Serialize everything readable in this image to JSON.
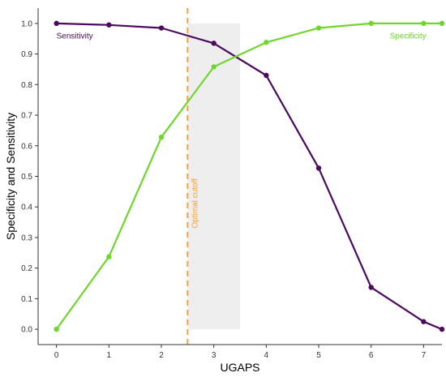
{
  "chart_data": {
    "type": "line",
    "xlabel": "UGAPS",
    "ylabel": "Specificity and Sensitivity",
    "xlim": [
      -0.35,
      7.35
    ],
    "ylim": [
      -0.05,
      1.05
    ],
    "x_ticks": [
      "0",
      "1",
      "2",
      "3",
      "4",
      "5",
      "6",
      "7"
    ],
    "y_ticks": [
      "0.0",
      "0.1",
      "0.2",
      "0.3",
      "0.4",
      "0.5",
      "0.6",
      "0.7",
      "0.8",
      "0.9",
      "1.0"
    ],
    "grid": false,
    "series": [
      {
        "name": "Sensitivity",
        "color": "#4b0a5e",
        "x": [
          0,
          1,
          2,
          3,
          4,
          5,
          6,
          7,
          7.35
        ],
        "y": [
          1.0,
          0.995,
          0.985,
          0.935,
          0.83,
          0.527,
          0.137,
          0.025,
          0.0
        ]
      },
      {
        "name": "Specificity",
        "color": "#6fd62c",
        "x": [
          0,
          1,
          2,
          3,
          4,
          5,
          6,
          7,
          7.35
        ],
        "y": [
          0.0,
          0.237,
          0.628,
          0.858,
          0.938,
          0.985,
          1.0,
          1.0,
          1.0
        ]
      }
    ],
    "annotations": {
      "cutoff": {
        "x": 2.5,
        "label": "Optimal cutoff",
        "color": "#f2a23a"
      },
      "band": {
        "x_range": [
          2.5,
          3.5
        ],
        "y_range": [
          0.0,
          1.0
        ],
        "color": "#eeeeee"
      }
    }
  }
}
